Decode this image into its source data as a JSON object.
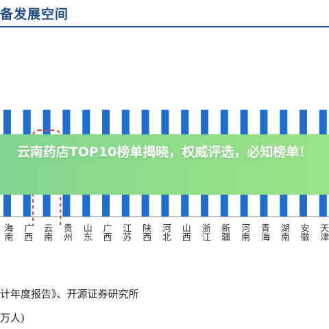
{
  "fragment": {
    "title": "备发展空间",
    "source": "计年度报告》、开源证券研究所",
    "unit": "万人)"
  },
  "banner": {
    "headline": "云南药店TOP10榜单揭晓，权威评选，必知榜单！"
  },
  "highlight": {
    "category": "云南",
    "style": "red dashed rounded box"
  },
  "colors": {
    "bar": "#1f6fd1",
    "reference_line": "#c0504d",
    "highlight_box": "#e04040",
    "banner": "#7ad48b",
    "title": "#1f4a86"
  },
  "chart_data": {
    "type": "bar",
    "categories": [
      "海南",
      "广西",
      "云南",
      "贵州",
      "山东",
      "广西",
      "江苏",
      "陕西",
      "河北",
      "山西",
      "浙江",
      "新疆",
      "河南",
      "青海",
      "湖南",
      "安徽",
      "天津"
    ],
    "x_tick_labels": [
      "海南",
      "广西",
      "云南",
      "贵州",
      "山东",
      "广西",
      "江苏",
      "陕西",
      "河北",
      "山西",
      "浙江",
      "新疆",
      "河南",
      "青海",
      "湖南",
      "安徽",
      "天津"
    ],
    "title": "",
    "xlabel": "",
    "ylabel": "",
    "legend": "none",
    "grid": false,
    "note": ""
  }
}
